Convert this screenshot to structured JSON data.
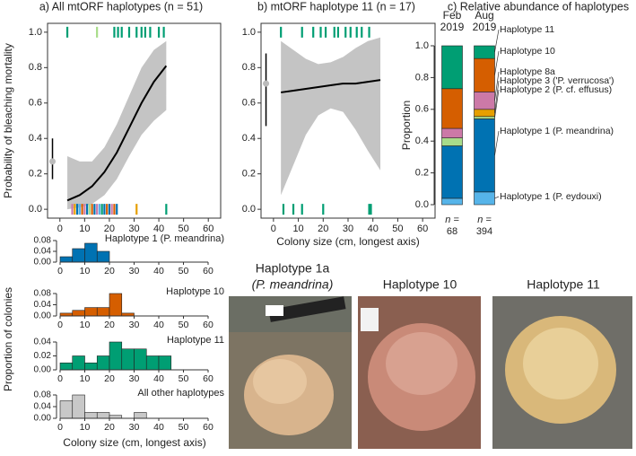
{
  "chart_data": [
    {
      "type": "line",
      "title": "a) All mtORF haplotypes (n = 51)",
      "ylabel": "Probability of bleaching mortality",
      "xlim": [
        -5,
        65
      ],
      "ylim": [
        -0.05,
        1.05
      ],
      "xticks": [
        0,
        10,
        20,
        30,
        40,
        50,
        60
      ],
      "yticks": [
        {
          "value": 0,
          "label": "0.0"
        },
        0.2,
        0.4,
        0.6,
        0.8,
        {
          "value": 1,
          "label": "1.0"
        }
      ],
      "x": [
        3,
        8,
        13,
        18,
        23,
        28,
        33,
        38,
        43
      ],
      "values": [
        0.05,
        0.08,
        0.13,
        0.21,
        0.32,
        0.46,
        0.6,
        0.72,
        0.81
      ],
      "ci_lower": [
        0.0,
        0.01,
        0.03,
        0.08,
        0.17,
        0.3,
        0.42,
        0.5,
        0.56
      ],
      "ci_upper": [
        0.3,
        0.27,
        0.27,
        0.35,
        0.48,
        0.64,
        0.8,
        0.9,
        0.95
      ],
      "line_color": "#000000",
      "ci_color": "#c4c4c4",
      "point": {
        "x": -3,
        "y": 0.27,
        "lower": 0.17,
        "upper": 0.4,
        "color": "#bbbbbb"
      },
      "rug_top_x": [
        3,
        15,
        22,
        23.5,
        25,
        28,
        31,
        33,
        34.5,
        36.5,
        40,
        42
      ],
      "rug_top_colors": [
        "#009e73",
        "#a8dc8a",
        "#009e73",
        "#009e73",
        "#009e73",
        "#009e73",
        "#009e73",
        "#009e73",
        "#009e73",
        "#009e73",
        "#009e73",
        "#009e73"
      ],
      "rug_bottom_x": [
        5,
        6,
        7,
        8,
        9,
        10,
        11,
        12,
        13,
        14,
        15,
        16,
        17,
        18,
        19,
        20,
        21,
        22,
        23,
        31,
        43
      ],
      "rug_bottom_colors": [
        "#cc79a7",
        "#e69f00",
        "#0072b2",
        "#56b4e9",
        "#d55e00",
        "#cc79a7",
        "#0072b2",
        "#a8dc8a",
        "#d55e00",
        "#0072b2",
        "#cc79a7",
        "#56b4e9",
        "#009e73",
        "#0072b2",
        "#d55e00",
        "#0072b2",
        "#cc79a7",
        "#d55e00",
        "#0072b2",
        "#e69f00",
        "#009e73"
      ]
    },
    {
      "type": "line",
      "title": "b) mtORF haplotype 11 (n = 17)",
      "xlabel": "Colony size (cm, longest axis)",
      "xlim": [
        -5,
        65
      ],
      "ylim": [
        -0.05,
        1.05
      ],
      "xticks": [
        0,
        10,
        20,
        30,
        40,
        50,
        60
      ],
      "yticks": [
        {
          "value": 0,
          "label": "0.0"
        },
        0.2,
        0.4,
        0.6,
        0.8,
        {
          "value": 1,
          "label": "1.0"
        }
      ],
      "x": [
        3,
        8,
        13,
        18,
        23,
        28,
        33,
        38,
        43
      ],
      "values": [
        0.66,
        0.67,
        0.68,
        0.69,
        0.7,
        0.71,
        0.71,
        0.72,
        0.73
      ],
      "ci_lower": [
        0.08,
        0.25,
        0.42,
        0.53,
        0.57,
        0.55,
        0.45,
        0.33,
        0.22
      ],
      "ci_upper": [
        0.95,
        0.9,
        0.85,
        0.82,
        0.83,
        0.86,
        0.91,
        0.95,
        0.97
      ],
      "line_color": "#000000",
      "ci_color": "#c4c4c4",
      "point": {
        "x": -3,
        "y": 0.71,
        "lower": 0.47,
        "upper": 0.88,
        "color": "#bbbbbb"
      },
      "rug_top_x": [
        3,
        11.5,
        16,
        19,
        21,
        24.5,
        26,
        29,
        31,
        33.5,
        35.5,
        38.5
      ],
      "rug_top_colors": [
        "#009e73",
        "#009e73",
        "#009e73",
        "#009e73",
        "#009e73",
        "#009e73",
        "#009e73",
        "#009e73",
        "#009e73",
        "#009e73",
        "#009e73",
        "#009e73"
      ],
      "rug_bottom_x": [
        4,
        8,
        11.5,
        20,
        38.5,
        39.2
      ],
      "rug_bottom_colors": [
        "#009e73",
        "#009e73",
        "#009e73",
        "#009e73",
        "#009e73",
        "#009e73"
      ]
    },
    {
      "type": "bar",
      "title": "c) Relative abundance of haplotypes",
      "ylabel": "Proportion",
      "stacked": true,
      "categories": [
        [
          "Feb",
          "2019"
        ],
        [
          "Aug",
          "2019"
        ]
      ],
      "n_prefix": "n =",
      "sample_sizes": [
        68,
        394
      ],
      "ylim": [
        0,
        1
      ],
      "yticks": [
        {
          "value": 0,
          "label": "0.0"
        },
        0.2,
        0.4,
        0.6,
        0.8,
        {
          "value": 1,
          "label": "1.0"
        }
      ],
      "series": [
        {
          "name": "Haplotype 1 (P. eydouxi)",
          "color": "#56b4e9",
          "values": [
            0.04,
            0.08
          ]
        },
        {
          "name": "Haplotype 1 (P. meandrina)",
          "color": "#0072b2",
          "values": [
            0.33,
            0.46
          ]
        },
        {
          "name": "Haplotype 2 (P. cf. effusus)",
          "color": "#a8dc8a",
          "values": [
            0.05,
            0.015
          ]
        },
        {
          "name": "Haplotype 3 ('P. verrucosa')",
          "color": "#e69f00",
          "values": [
            0,
            0.045
          ]
        },
        {
          "name": "Haplotype 8a",
          "color": "#cc79a7",
          "values": [
            0.06,
            0.11
          ]
        },
        {
          "name": "Haplotype 10",
          "color": "#d55e00",
          "values": [
            0.25,
            0.21
          ]
        },
        {
          "name": "Haplotype 11",
          "color": "#009e73",
          "values": [
            0.27,
            0.08
          ]
        }
      ]
    },
    {
      "type": "histogram",
      "ylabel": "Proportion of colonies",
      "xlabel": "Colony size (cm, longest axis)",
      "xlim": [
        0,
        60
      ],
      "xticks": [
        0,
        10,
        20,
        30,
        40,
        50,
        60
      ],
      "panels": [
        {
          "label": "Haplotype 1 (P. meandrina)",
          "color": "#0072b2",
          "bins": [
            0,
            5,
            10,
            15,
            20
          ],
          "values": [
            0.02,
            0.05,
            0.07,
            0.04
          ],
          "ylim": [
            0,
            0.08
          ],
          "yticks": [
            {
              "value": 0,
              "label": "0.00"
            },
            0.04,
            0.08
          ]
        },
        {
          "label": "Haplotype 10",
          "color": "#d55e00",
          "bins": [
            0,
            5,
            10,
            15,
            20,
            25,
            30
          ],
          "values": [
            0.01,
            0.02,
            0.03,
            0.03,
            0.08,
            0.01
          ],
          "ylim": [
            0,
            0.08
          ],
          "yticks": [
            {
              "value": 0,
              "label": "0.00"
            },
            0.04,
            0.08
          ]
        },
        {
          "label": "Haplotype 11",
          "color": "#009e73",
          "bins": [
            0,
            5,
            10,
            15,
            20,
            25,
            30,
            35,
            40,
            45
          ],
          "values": [
            0.01,
            0.02,
            0.01,
            0.02,
            0.04,
            0.03,
            0.03,
            0.02,
            0.02
          ],
          "ylim": [
            0,
            0.04
          ],
          "yticks": [
            {
              "value": 0,
              "label": "0.00"
            },
            0.02,
            0.04
          ]
        },
        {
          "label": "All other haplotypes",
          "color": "#c8c8c8",
          "bins": [
            0,
            5,
            10,
            15,
            20,
            25,
            30,
            35
          ],
          "values": [
            0.06,
            0.08,
            0.02,
            0.02,
            0.01,
            0,
            0.02
          ],
          "ylim": [
            0,
            0.08
          ],
          "yticks": [
            {
              "value": 0,
              "label": "0.00"
            },
            0.04,
            0.08
          ]
        }
      ]
    }
  ],
  "photos": [
    {
      "caption": [
        "Haplotype 1a",
        "(P. meandrina)"
      ]
    },
    {
      "caption": [
        "Haplotype 10"
      ]
    },
    {
      "caption": [
        "Haplotype 11"
      ]
    }
  ]
}
